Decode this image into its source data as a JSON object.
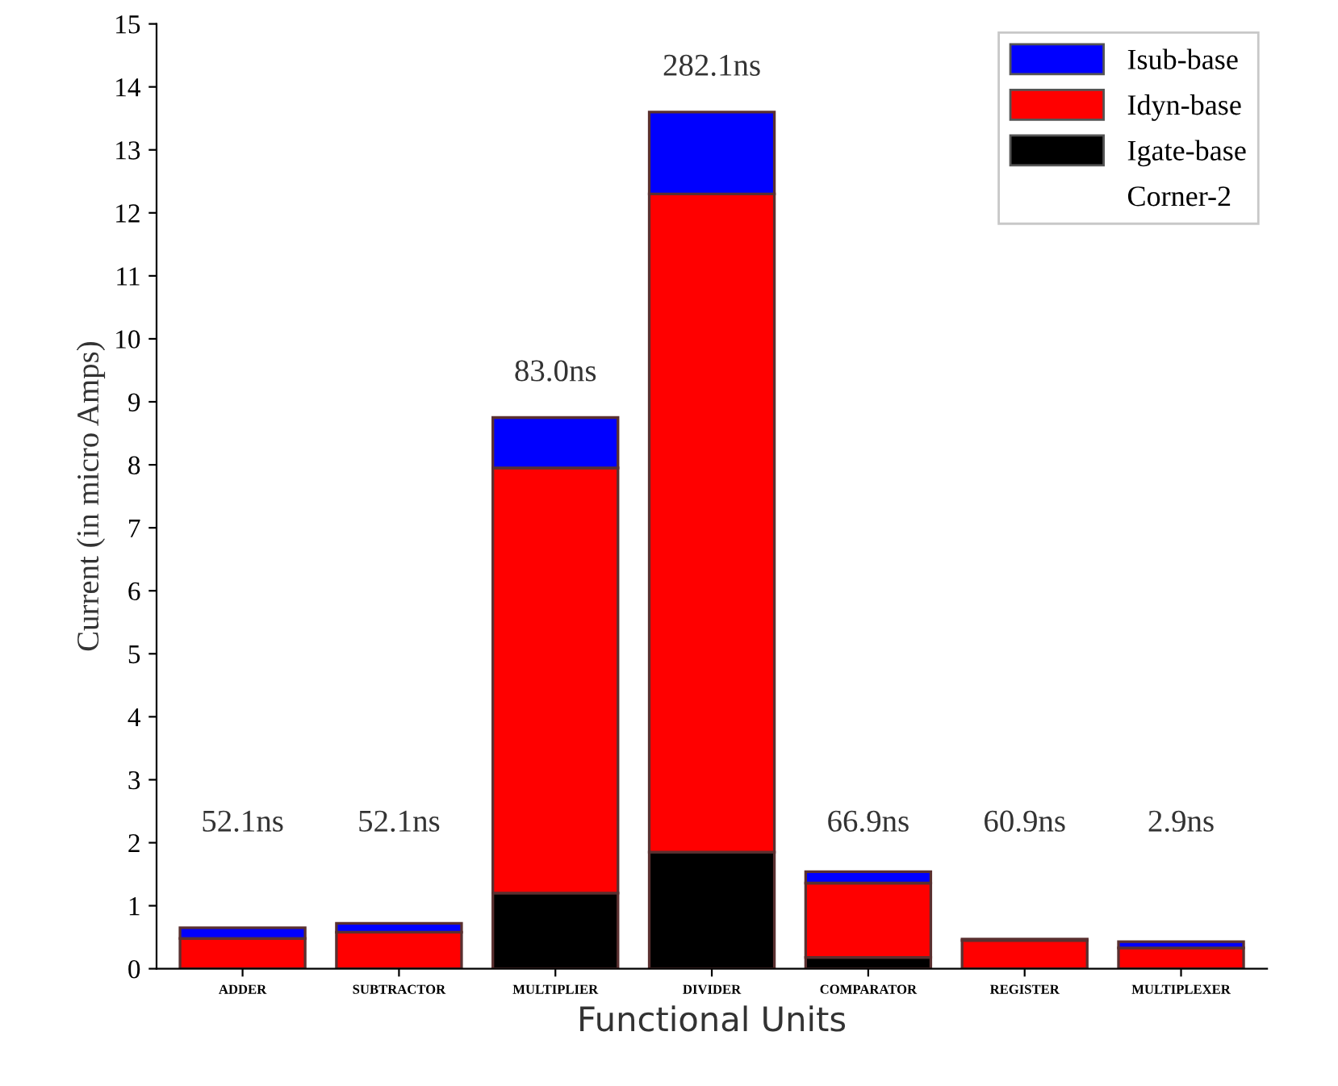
{
  "chart_data": {
    "type": "bar",
    "stacked": true,
    "categories": [
      "ADDER",
      "SUBTRACTOR",
      "MULTIPLIER",
      "DIVIDER",
      "COMPARATOR",
      "REGISTER",
      "MULTIPLEXER"
    ],
    "series": [
      {
        "name": "Igate-base",
        "color": "#000000",
        "values": [
          null,
          null,
          1.2,
          1.85,
          0.18,
          null,
          null
        ]
      },
      {
        "name": "Idyn-base",
        "color": "#ff0000",
        "values": [
          0.48,
          0.58,
          6.75,
          10.45,
          1.18,
          0.45,
          0.33
        ]
      },
      {
        "name": "Isub-base",
        "color": "#0000ff",
        "values": [
          0.17,
          0.14,
          0.8,
          1.3,
          0.18,
          0.02,
          0.1
        ]
      }
    ],
    "xlabel": "Functional Units",
    "ylabel": "Current (in micro Amps)",
    "legend_title": "Corner-2",
    "ylim": [
      0,
      15
    ],
    "yticks": [
      0,
      1,
      2,
      3,
      4,
      5,
      6,
      7,
      8,
      9,
      10,
      11,
      12,
      13,
      14,
      15
    ],
    "legend": "top right",
    "grid": false,
    "annotations": [
      "52.1ns",
      "52.1ns",
      "83.0ns",
      "282.1ns",
      "66.9ns",
      "60.9ns",
      "2.9ns"
    ]
  }
}
